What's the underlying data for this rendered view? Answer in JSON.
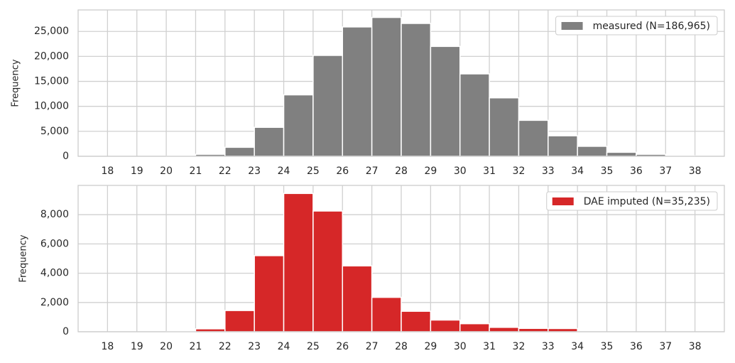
{
  "chart_data": [
    {
      "type": "histogram",
      "ylabel": "Frequency",
      "bins": [
        18,
        19,
        20,
        21,
        22,
        23,
        24,
        25,
        26,
        27,
        28,
        29,
        30,
        31,
        32,
        33,
        34,
        35,
        36,
        37,
        38
      ],
      "series": [
        {
          "name": "measured (N=186,965)",
          "color": "#808080",
          "values": [
            0,
            0,
            30,
            400,
            1800,
            5800,
            12300,
            20200,
            25900,
            27800,
            26600,
            22000,
            16500,
            11700,
            7200,
            4100,
            2000,
            800,
            400,
            100
          ]
        }
      ],
      "xlim": [
        17,
        39
      ],
      "ylim": [
        0,
        29300
      ],
      "xticks": [
        18,
        19,
        20,
        21,
        22,
        23,
        24,
        25,
        26,
        27,
        28,
        29,
        30,
        31,
        32,
        33,
        34,
        35,
        36,
        37,
        38
      ],
      "yticks": [
        0,
        {
          "value": 5000,
          "label": "5,000"
        },
        {
          "value": 10000,
          "label": "10,000"
        },
        {
          "value": 15000,
          "label": "15,000"
        },
        {
          "value": 20000,
          "label": "20,000"
        },
        {
          "value": 25000,
          "label": "25,000"
        }
      ],
      "grid": true,
      "legend": "upper right"
    },
    {
      "type": "histogram",
      "ylabel": "Frequency",
      "bins": [
        18,
        19,
        20,
        21,
        22,
        23,
        24,
        25,
        26,
        27,
        28,
        29,
        30,
        31,
        32,
        33,
        34,
        35,
        36,
        37,
        38
      ],
      "series": [
        {
          "name": "DAE imputed (N=35,235)",
          "color": "#d62728",
          "values": [
            0,
            0,
            10,
            200,
            1450,
            5200,
            9450,
            8250,
            4500,
            2350,
            1400,
            800,
            550,
            300,
            230,
            220,
            0,
            0,
            0,
            0
          ]
        }
      ],
      "xlim": [
        17,
        39
      ],
      "ylim": [
        0,
        10000
      ],
      "xticks": [
        18,
        19,
        20,
        21,
        22,
        23,
        24,
        25,
        26,
        27,
        28,
        29,
        30,
        31,
        32,
        33,
        34,
        35,
        36,
        37,
        38
      ],
      "yticks": [
        0,
        {
          "value": 2000,
          "label": "2,000"
        },
        {
          "value": 4000,
          "label": "4,000"
        },
        {
          "value": 6000,
          "label": "6,000"
        },
        {
          "value": 8000,
          "label": "8,000"
        }
      ],
      "grid": true,
      "legend": "upper right"
    }
  ]
}
